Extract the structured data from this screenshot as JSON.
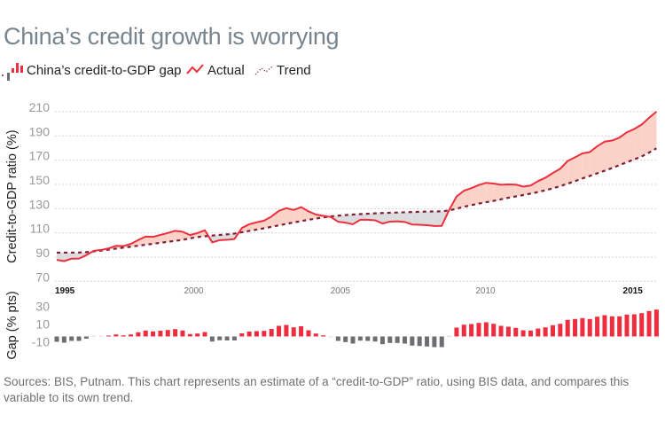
{
  "title": "China’s credit growth is worrying",
  "legend": [
    {
      "icon": "gap-bars-icon",
      "label": "China’s credit-to-GDP gap"
    },
    {
      "icon": "zigzag-line-icon",
      "label": "Actual"
    },
    {
      "icon": "dotted-line-icon",
      "label": "Trend"
    }
  ],
  "note": "Sources: BIS, Putnam. This chart represents an estimate of a “credit-to-GDP” ratio, using BIS data, and compares this variable to its own trend.",
  "colors": {
    "actual": "#ec2f3e",
    "trend": "#7d1f33",
    "fill_above": "#fad2c8",
    "fill_below": "#dcdcde",
    "bar_positive": "#ee2e3e",
    "bar_negative": "#6d6e71",
    "grid": "#d4d4d4",
    "title": "#78858f"
  },
  "chart_data": [
    {
      "type": "line",
      "title": "Credit-to-GDP ratio",
      "ylabel": "Credit-to-GDP ratio (%)",
      "xlabel": "",
      "ylim": [
        70,
        210
      ],
      "yticks": [
        70,
        90,
        110,
        130,
        150,
        170,
        190,
        210
      ],
      "grid": true,
      "xticks": [
        {
          "label": "1995",
          "index": 0,
          "bold": true
        },
        {
          "label": "2000",
          "index": 18.5,
          "bold": false
        },
        {
          "label": "2005",
          "index": 38.3,
          "bold": false
        },
        {
          "label": "2010",
          "index": 57.9,
          "bold": false
        },
        {
          "label": "2015",
          "index": 77.8,
          "bold": true
        }
      ],
      "frequency": "quarterly",
      "x": [
        "1995Q3",
        "1995Q4",
        "1996Q1",
        "1996Q2",
        "1996Q3",
        "1996Q4",
        "1997Q1",
        "1997Q2",
        "1997Q3",
        "1997Q4",
        "1998Q1",
        "1998Q2",
        "1998Q3",
        "1998Q4",
        "1999Q1",
        "1999Q2",
        "1999Q3",
        "1999Q4",
        "2000Q1",
        "2000Q2",
        "2000Q3",
        "2000Q4",
        "2001Q1",
        "2001Q2",
        "2001Q3",
        "2001Q4",
        "2002Q1",
        "2002Q2",
        "2002Q3",
        "2002Q4",
        "2003Q1",
        "2003Q2",
        "2003Q3",
        "2003Q4",
        "2004Q1",
        "2004Q2",
        "2004Q3",
        "2004Q4",
        "2005Q1",
        "2005Q2",
        "2005Q3",
        "2005Q4",
        "2006Q1",
        "2006Q2",
        "2006Q3",
        "2006Q4",
        "2007Q1",
        "2007Q2",
        "2007Q3",
        "2007Q4",
        "2008Q1",
        "2008Q2",
        "2008Q3",
        "2008Q4",
        "2009Q1",
        "2009Q2",
        "2009Q3",
        "2009Q4",
        "2010Q1",
        "2010Q2",
        "2010Q3",
        "2010Q4",
        "2011Q1",
        "2011Q2",
        "2011Q3",
        "2011Q4",
        "2012Q1",
        "2012Q2",
        "2012Q3",
        "2012Q4",
        "2013Q1",
        "2013Q2",
        "2013Q3",
        "2013Q4",
        "2014Q1",
        "2014Q2",
        "2014Q3",
        "2014Q4",
        "2015Q1",
        "2015Q2",
        "2015Q3",
        "2015Q4"
      ],
      "series": [
        {
          "name": "Actual",
          "values": [
            87.7,
            86.7,
            88.7,
            88.8,
            91.6,
            95.2,
            95.9,
            97.2,
            99.3,
            99.1,
            100.9,
            104.1,
            106.9,
            106.7,
            108.3,
            109.9,
            111.7,
            110.9,
            108.2,
            109.8,
            112.2,
            102.1,
            104.0,
            104.3,
            104.9,
            114.0,
            117.1,
            118.7,
            120.1,
            123.5,
            128.2,
            130.4,
            128.9,
            131.2,
            127.8,
            125.1,
            124.1,
            123.1,
            119.2,
            118.4,
            117.1,
            120.8,
            120.8,
            120.4,
            117.7,
            119.3,
            119.5,
            119.0,
            116.9,
            116.7,
            116.3,
            115.7,
            115.8,
            129.0,
            140.0,
            144.8,
            146.9,
            149.5,
            151.3,
            150.7,
            149.7,
            150.0,
            149.8,
            148.2,
            149.1,
            152.7,
            155.5,
            159.4,
            162.9,
            169.3,
            172.4,
            175.6,
            176.7,
            181.5,
            185.3,
            186.2,
            188.6,
            193.0,
            195.7,
            199.4,
            205.0,
            210.1
          ]
        },
        {
          "name": "Trend",
          "values": [
            93.7,
            93.7,
            93.7,
            93.8,
            94.1,
            94.7,
            95.4,
            96.2,
            97.0,
            97.8,
            98.6,
            99.4,
            100.2,
            101.0,
            101.8,
            102.6,
            103.4,
            104.2,
            105.5,
            106.5,
            107.2,
            107.8,
            108.3,
            108.8,
            109.4,
            110.5,
            111.6,
            112.7,
            113.8,
            115.0,
            116.2,
            117.4,
            118.6,
            119.7,
            120.8,
            121.8,
            122.8,
            123.6,
            124.2,
            124.7,
            125.1,
            125.5,
            125.8,
            126.1,
            126.4,
            126.6,
            126.8,
            127.0,
            127.2,
            127.4,
            127.6,
            127.7,
            127.8,
            128.5,
            130.0,
            131.5,
            132.9,
            134.2,
            135.3,
            136.4,
            137.7,
            139.0,
            140.1,
            141.2,
            142.4,
            143.7,
            145.2,
            146.7,
            148.6,
            150.6,
            152.7,
            154.9,
            157.0,
            159.2,
            161.3,
            163.5,
            165.9,
            168.3,
            170.7,
            173.1,
            176.3,
            179.8
          ]
        }
      ]
    },
    {
      "type": "bar",
      "title": "China’s credit-to-GDP gap",
      "ylabel": "Gap (% pts)",
      "ylim": [
        -12,
        31
      ],
      "yticks": [
        -10,
        10,
        30
      ],
      "grid": false,
      "series": [
        {
          "name": "Gap",
          "values": [
            -6,
            -7,
            -5,
            -5,
            -2.5,
            0.5,
            0.5,
            1,
            2.3,
            1.3,
            2.3,
            4.7,
            6.7,
            5.7,
            6.5,
            7.3,
            8.3,
            6.7,
            2.7,
            3.3,
            5,
            -5.7,
            -4.3,
            -4.5,
            -4.5,
            3.5,
            5.5,
            6,
            6.3,
            8.5,
            12,
            13,
            10.3,
            11.5,
            7,
            3.3,
            1.3,
            -0.5,
            -5,
            -6.3,
            -8,
            -4.7,
            -5,
            -5.7,
            -8.7,
            -7.3,
            -7.3,
            -8,
            -10.3,
            -10.7,
            -11.3,
            -12,
            -12,
            0.5,
            10,
            13.3,
            14,
            15.3,
            16,
            14.3,
            12,
            11,
            9.7,
            7,
            6.7,
            9,
            10.3,
            12.7,
            14.3,
            18.7,
            19.7,
            20.7,
            19.7,
            22.3,
            24,
            22.7,
            22.7,
            24.7,
            25,
            26.3,
            28.7,
            30.3
          ]
        }
      ]
    }
  ]
}
